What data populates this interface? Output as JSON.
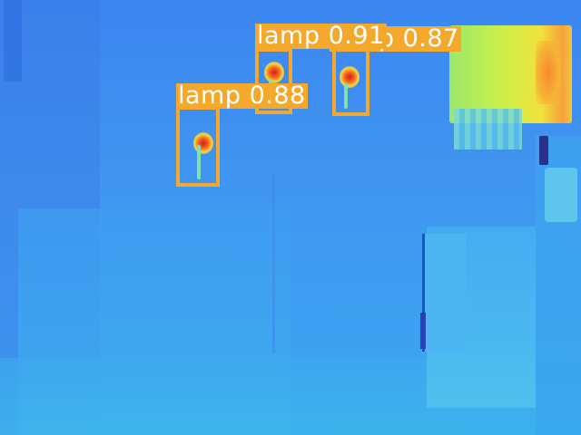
{
  "image": {
    "kind": "thermal-camera-frame",
    "palette": "blue-cyan-green-yellow-red"
  },
  "detections": [
    {
      "class": "lamp",
      "confidence": "0.88",
      "label": "lamp 0.88"
    },
    {
      "class": "lamp",
      "confidence": "0.91",
      "label": "lamp 0.91"
    },
    {
      "class": "lamp",
      "confidence": "0.87",
      "label": "lamp 0.87"
    }
  ],
  "colors": {
    "box": "#f4a82c",
    "label_text": "#ffffff",
    "hot": "#e23b1a",
    "warm": "#f6d43a",
    "background_cool": "#3c86f2"
  }
}
